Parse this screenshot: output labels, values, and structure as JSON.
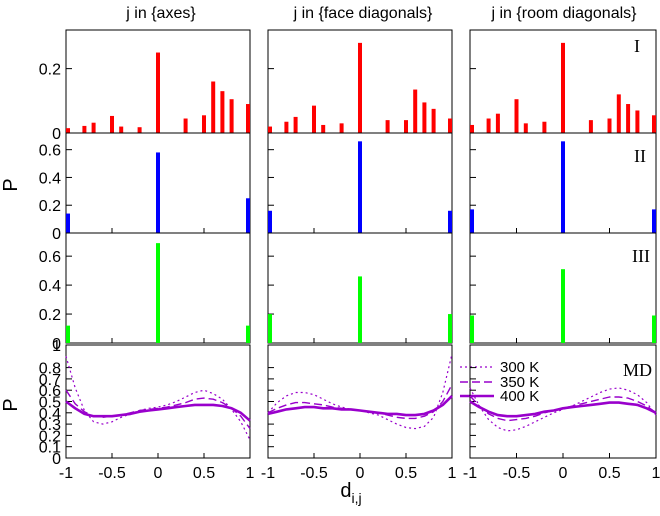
{
  "figure": {
    "column_titles": [
      "j in {axes}",
      "j in {face diagonals}",
      "j in {room diagonals}"
    ],
    "row_labels": [
      "I",
      "II",
      "III",
      "MD"
    ],
    "y_axis_label": "P",
    "x_axis_label": "d",
    "x_axis_label_sub": "i,j"
  },
  "chart_data": [
    {
      "type": "bar",
      "row": "I",
      "x_values": [
        -1,
        -0.9,
        -0.8,
        -0.7,
        -0.6,
        -0.5,
        -0.4,
        -0.3,
        -0.2,
        -0.1,
        0,
        0.1,
        0.2,
        0.3,
        0.4,
        0.5,
        0.6,
        0.7,
        0.8,
        0.9,
        1
      ],
      "yticks": [
        0,
        0.2
      ],
      "ylim": [
        0,
        0.32
      ],
      "color": "#ff0000",
      "columns": [
        {
          "title": "j in {axes}",
          "values": [
            0.015,
            0.0,
            0.022,
            0.032,
            0.0,
            0.053,
            0.02,
            0.0,
            0.018,
            0.0,
            0.25,
            0.0,
            0.0,
            0.045,
            0.0,
            0.055,
            0.16,
            0.13,
            0.105,
            0.0,
            0.09
          ]
        },
        {
          "title": "j in {face diagonals}",
          "values": [
            0.02,
            0.0,
            0.035,
            0.05,
            0.0,
            0.085,
            0.025,
            0.0,
            0.03,
            0.0,
            0.28,
            0.0,
            0.0,
            0.04,
            0.0,
            0.04,
            0.135,
            0.095,
            0.075,
            0.0,
            0.045
          ]
        },
        {
          "title": "j in {room diagonals}",
          "values": [
            0.025,
            0.0,
            0.045,
            0.06,
            0.0,
            0.105,
            0.03,
            0.0,
            0.035,
            0.0,
            0.28,
            0.0,
            0.0,
            0.04,
            0.0,
            0.045,
            0.12,
            0.09,
            0.07,
            0.0,
            0.055
          ]
        }
      ]
    },
    {
      "type": "bar",
      "row": "II",
      "x_values": [
        -1,
        0,
        1
      ],
      "yticks": [
        0,
        0.2,
        0.4,
        0.6
      ],
      "ylim": [
        0,
        0.72
      ],
      "color": "#0000ff",
      "columns": [
        {
          "title": "j in {axes}",
          "values": [
            0.14,
            0.58,
            0.25
          ]
        },
        {
          "title": "j in {face diagonals}",
          "values": [
            0.16,
            0.66,
            0.16
          ]
        },
        {
          "title": "j in {room diagonals}",
          "values": [
            0.17,
            0.66,
            0.17
          ]
        }
      ]
    },
    {
      "type": "bar",
      "row": "III",
      "x_values": [
        -1,
        0,
        1
      ],
      "yticks": [
        0,
        0.2,
        0.4,
        0.6
      ],
      "ylim": [
        0,
        0.76
      ],
      "color": "#00ff00",
      "columns": [
        {
          "title": "j in {axes}",
          "values": [
            0.12,
            0.69,
            0.12
          ]
        },
        {
          "title": "j in {face diagonals}",
          "values": [
            0.2,
            0.46,
            0.2
          ]
        },
        {
          "title": "j in {room diagonals}",
          "values": [
            0.19,
            0.51,
            0.19
          ]
        }
      ]
    },
    {
      "type": "line",
      "row": "MD",
      "x": [
        -1,
        -0.9,
        -0.8,
        -0.7,
        -0.6,
        -0.5,
        -0.4,
        -0.3,
        -0.2,
        -0.1,
        0,
        0.1,
        0.2,
        0.3,
        0.4,
        0.5,
        0.6,
        0.7,
        0.8,
        0.9,
        1
      ],
      "xticks": [
        -1,
        -0.5,
        0,
        0.5,
        1
      ],
      "yticks": [
        0,
        0.1,
        0.2,
        0.3,
        0.4,
        0.5,
        0.6,
        0.7,
        0.8,
        1
      ],
      "ylim": [
        0,
        1
      ],
      "xlim": [
        -1,
        1
      ],
      "color": "#9900cc",
      "legend": [
        "300 K",
        "350 K",
        "400 K"
      ],
      "columns": [
        {
          "title": "j in {axes}",
          "series": [
            {
              "name": "300 K",
              "values": [
                0.9,
                0.62,
                0.42,
                0.32,
                0.3,
                0.32,
                0.36,
                0.39,
                0.42,
                0.44,
                0.45,
                0.47,
                0.5,
                0.54,
                0.58,
                0.6,
                0.57,
                0.52,
                0.43,
                0.32,
                0.16
              ]
            },
            {
              "name": "350 K",
              "values": [
                0.6,
                0.48,
                0.41,
                0.37,
                0.36,
                0.37,
                0.38,
                0.4,
                0.42,
                0.43,
                0.44,
                0.45,
                0.47,
                0.49,
                0.52,
                0.53,
                0.52,
                0.49,
                0.44,
                0.37,
                0.26
              ]
            },
            {
              "name": "400 K",
              "values": [
                0.5,
                0.44,
                0.39,
                0.37,
                0.37,
                0.37,
                0.38,
                0.39,
                0.41,
                0.42,
                0.43,
                0.44,
                0.45,
                0.46,
                0.47,
                0.47,
                0.47,
                0.46,
                0.44,
                0.4,
                0.33
              ]
            }
          ]
        },
        {
          "title": "j in {face diagonals}",
          "series": [
            {
              "name": "300 K",
              "values": [
                0.4,
                0.49,
                0.55,
                0.58,
                0.58,
                0.56,
                0.52,
                0.48,
                0.45,
                0.43,
                0.42,
                0.4,
                0.38,
                0.34,
                0.3,
                0.27,
                0.26,
                0.28,
                0.36,
                0.58,
                0.92
              ]
            },
            {
              "name": "350 K",
              "values": [
                0.4,
                0.44,
                0.47,
                0.49,
                0.49,
                0.48,
                0.47,
                0.45,
                0.44,
                0.43,
                0.42,
                0.41,
                0.4,
                0.38,
                0.36,
                0.35,
                0.35,
                0.37,
                0.41,
                0.5,
                0.65
              ]
            },
            {
              "name": "400 K",
              "values": [
                0.39,
                0.41,
                0.43,
                0.44,
                0.45,
                0.45,
                0.44,
                0.44,
                0.43,
                0.43,
                0.42,
                0.41,
                0.4,
                0.39,
                0.39,
                0.38,
                0.38,
                0.39,
                0.42,
                0.47,
                0.55
              ]
            }
          ]
        },
        {
          "title": "j in {room diagonals}",
          "series": [
            {
              "name": "300 K",
              "values": [
                0.62,
                0.46,
                0.34,
                0.27,
                0.24,
                0.25,
                0.28,
                0.32,
                0.36,
                0.4,
                0.43,
                0.46,
                0.5,
                0.54,
                0.58,
                0.61,
                0.62,
                0.6,
                0.56,
                0.49,
                0.38
              ]
            },
            {
              "name": "350 K",
              "values": [
                0.55,
                0.46,
                0.39,
                0.35,
                0.33,
                0.34,
                0.35,
                0.37,
                0.4,
                0.42,
                0.44,
                0.46,
                0.48,
                0.5,
                0.52,
                0.54,
                0.54,
                0.53,
                0.5,
                0.46,
                0.4
              ]
            },
            {
              "name": "400 K",
              "values": [
                0.5,
                0.45,
                0.41,
                0.38,
                0.37,
                0.37,
                0.38,
                0.39,
                0.41,
                0.42,
                0.44,
                0.45,
                0.46,
                0.47,
                0.48,
                0.49,
                0.49,
                0.48,
                0.47,
                0.44,
                0.4
              ]
            }
          ]
        }
      ]
    }
  ]
}
